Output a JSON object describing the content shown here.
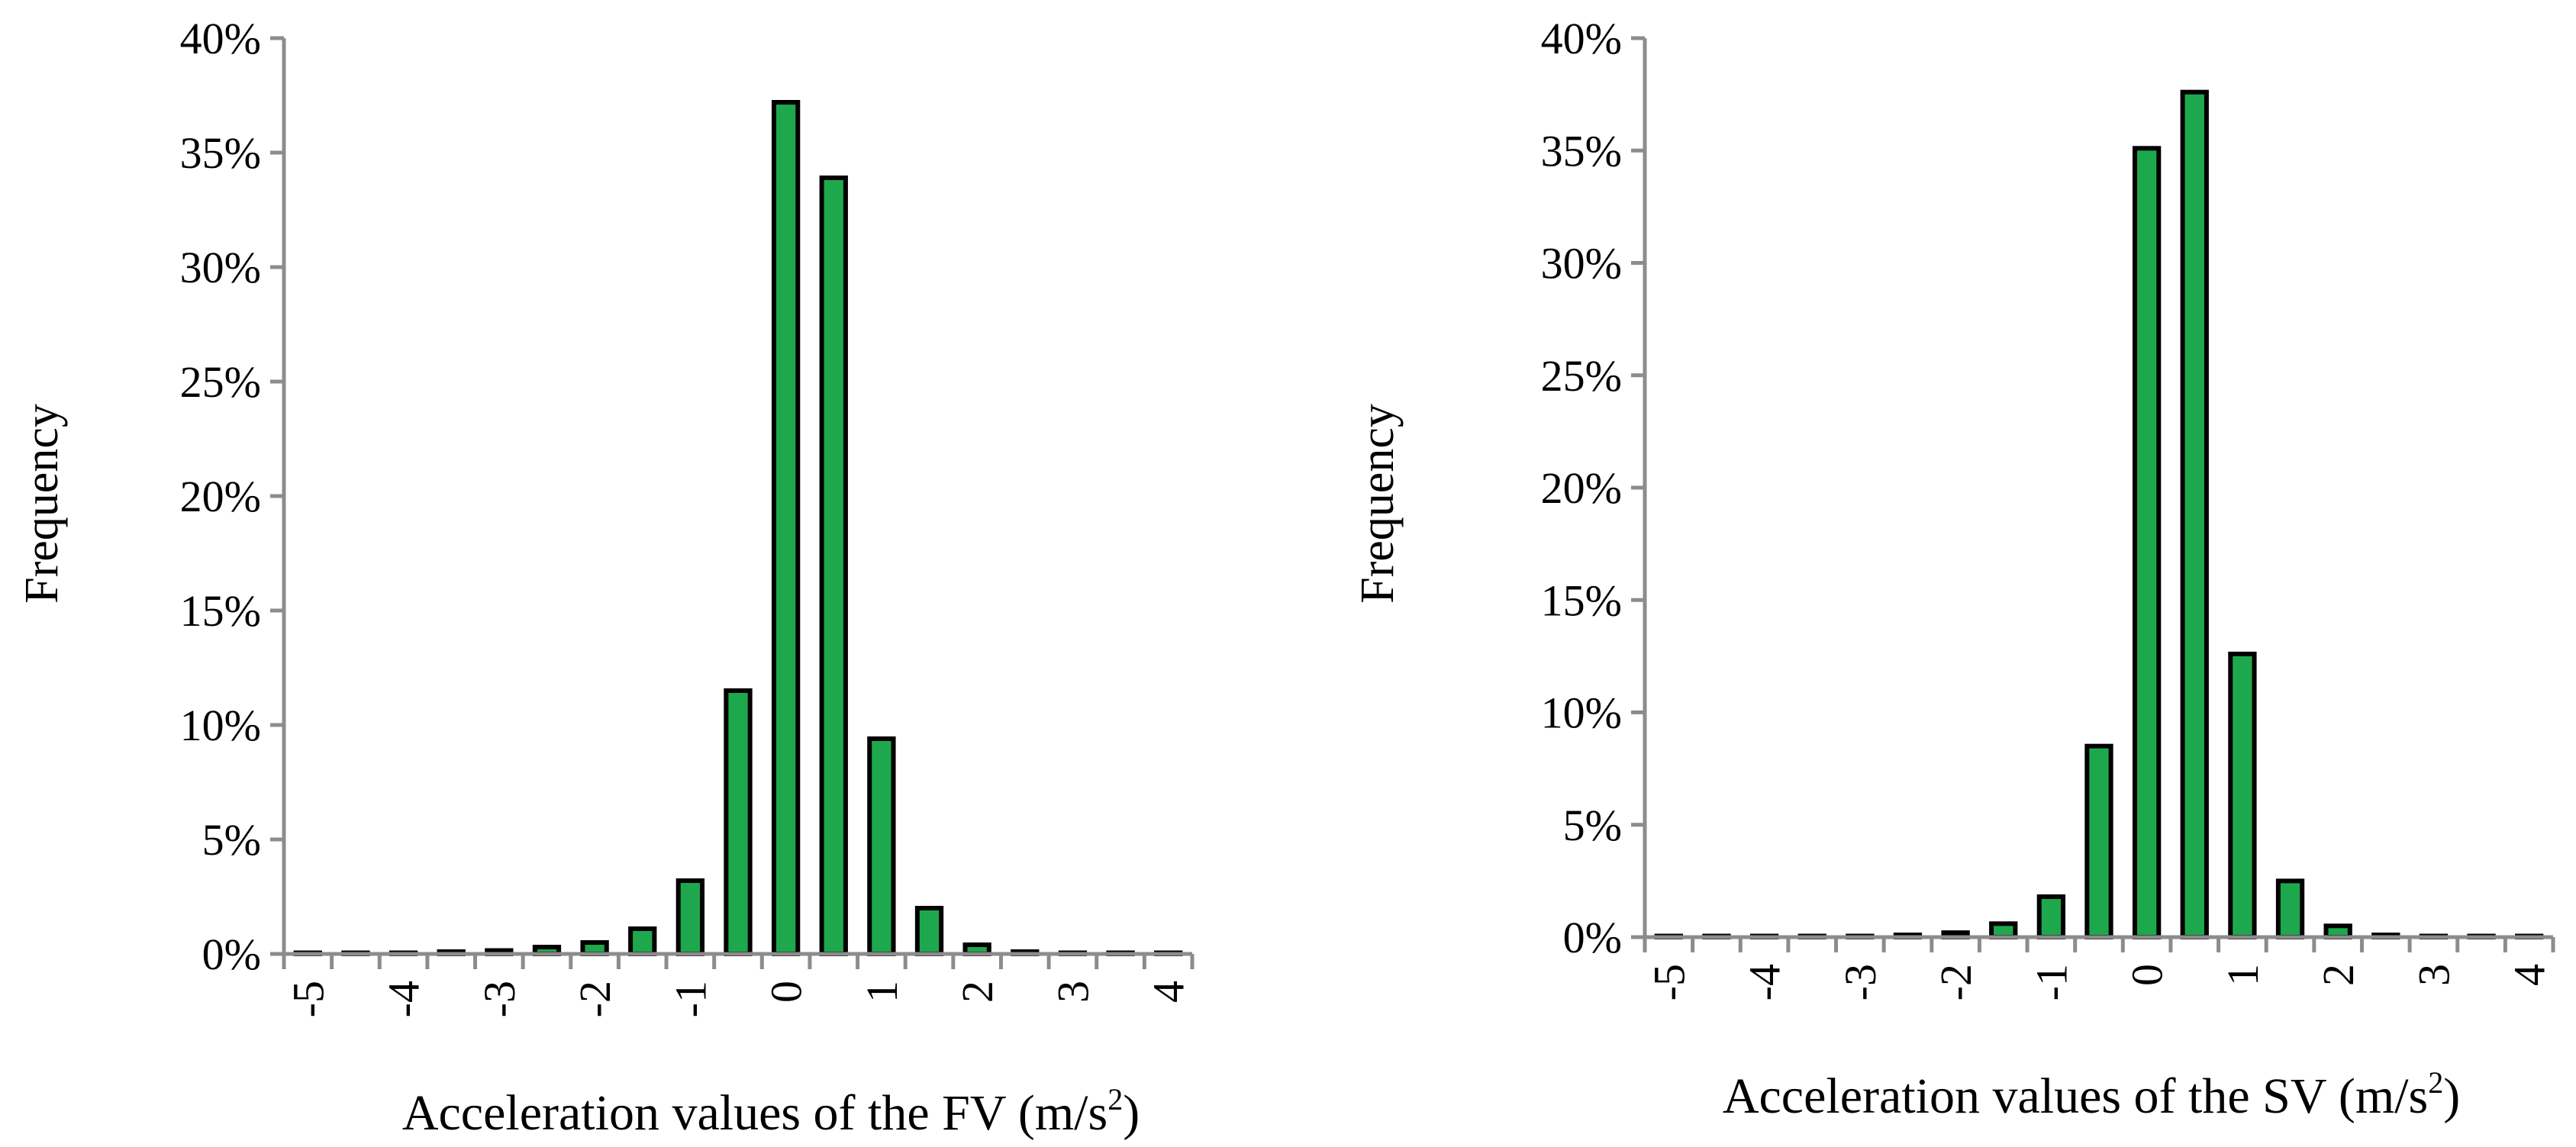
{
  "colors": {
    "bar_fill": "#1EA84D",
    "bar_stroke": "#000000",
    "axis": "#8C8C8C",
    "background": "#FFFFFF"
  },
  "chart_data": [
    {
      "type": "bar",
      "categories": [
        "-5",
        "-4.5",
        "-4",
        "-3.5",
        "-3",
        "-2.5",
        "-2",
        "-1.5",
        "-1",
        "-0.5",
        "0",
        "0.5",
        "1",
        "1.5",
        "2",
        "2.5",
        "3",
        "3.5",
        "4"
      ],
      "tick_labels": [
        "-5",
        "-4",
        "-3",
        "-2",
        "-1",
        "0",
        "1",
        "2",
        "3",
        "4"
      ],
      "values": [
        0.05,
        0.05,
        0.05,
        0.1,
        0.15,
        0.3,
        0.5,
        1.1,
        3.2,
        11.5,
        37.2,
        33.9,
        9.4,
        2.0,
        0.4,
        0.1,
        0.05,
        0.05,
        0.05
      ],
      "title": "",
      "xlabel": "Acceleration values of the FV (m/s",
      "xlabel_sup": "2",
      "xlabel_end": ")",
      "ylabel": "Frequency",
      "y_ticks": [
        "0%",
        "5%",
        "10%",
        "15%",
        "20%",
        "25%",
        "30%",
        "35%",
        "40%"
      ],
      "ylim": [
        0,
        40
      ],
      "grid": false,
      "legend": "none"
    },
    {
      "type": "bar",
      "categories": [
        "-5",
        "-4.5",
        "-4",
        "-3.5",
        "-3",
        "-2.5",
        "-2",
        "-1.5",
        "-1",
        "-0.5",
        "0",
        "0.5",
        "1",
        "1.5",
        "2",
        "2.5",
        "3",
        "3.5",
        "4"
      ],
      "tick_labels": [
        "-5",
        "-4",
        "-3",
        "-2",
        "-1",
        "0",
        "1",
        "2",
        "3",
        "4"
      ],
      "values": [
        0.05,
        0.05,
        0.05,
        0.05,
        0.05,
        0.1,
        0.2,
        0.6,
        1.8,
        8.5,
        35.1,
        37.6,
        12.6,
        2.5,
        0.5,
        0.1,
        0.05,
        0.05,
        0.05
      ],
      "title": "",
      "xlabel": "Acceleration values of the SV (m/s",
      "xlabel_sup": "2",
      "xlabel_end": ")",
      "ylabel": "Frequency",
      "y_ticks": [
        "0%",
        "5%",
        "10%",
        "15%",
        "20%",
        "25%",
        "30%",
        "35%",
        "40%"
      ],
      "ylim": [
        0,
        40
      ],
      "grid": false,
      "legend": "none"
    }
  ]
}
